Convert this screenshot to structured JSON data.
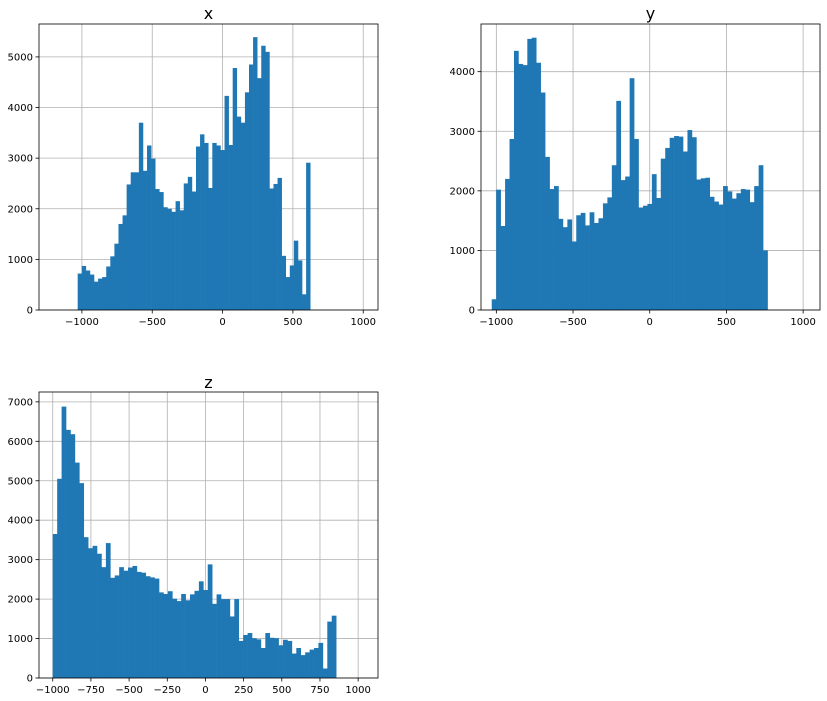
{
  "figure": {
    "background": "#ffffff",
    "bar_color": "#1f77b4",
    "grid_color": "#b0b0b0"
  },
  "chart_data": [
    {
      "type": "bar",
      "title": "x",
      "grid": true,
      "bin_width": 29,
      "xlim": [
        -1305,
        1105
      ],
      "ylim": [
        0,
        5650
      ],
      "xticks": [
        -1000,
        -500,
        0,
        500,
        1000
      ],
      "yticks": [
        0,
        1000,
        2000,
        3000,
        4000,
        5000
      ],
      "bins": [
        {
          "x": -1030,
          "count": 720
        },
        {
          "x": -1001,
          "count": 870
        },
        {
          "x": -972,
          "count": 780
        },
        {
          "x": -943,
          "count": 700
        },
        {
          "x": -914,
          "count": 560
        },
        {
          "x": -885,
          "count": 620
        },
        {
          "x": -856,
          "count": 650
        },
        {
          "x": -827,
          "count": 860
        },
        {
          "x": -798,
          "count": 1060
        },
        {
          "x": -769,
          "count": 1310
        },
        {
          "x": -740,
          "count": 1700
        },
        {
          "x": -711,
          "count": 1870
        },
        {
          "x": -682,
          "count": 2480
        },
        {
          "x": -653,
          "count": 2720
        },
        {
          "x": -624,
          "count": 2720
        },
        {
          "x": -595,
          "count": 3700
        },
        {
          "x": -566,
          "count": 2750
        },
        {
          "x": -537,
          "count": 3250
        },
        {
          "x": -508,
          "count": 2990
        },
        {
          "x": -479,
          "count": 2390
        },
        {
          "x": -450,
          "count": 2330
        },
        {
          "x": -421,
          "count": 2030
        },
        {
          "x": -392,
          "count": 2000
        },
        {
          "x": -363,
          "count": 1940
        },
        {
          "x": -334,
          "count": 2150
        },
        {
          "x": -305,
          "count": 1970
        },
        {
          "x": -276,
          "count": 2500
        },
        {
          "x": -247,
          "count": 2630
        },
        {
          "x": -218,
          "count": 2340
        },
        {
          "x": -189,
          "count": 3230
        },
        {
          "x": -160,
          "count": 3470
        },
        {
          "x": -131,
          "count": 3300
        },
        {
          "x": -102,
          "count": 2410
        },
        {
          "x": -73,
          "count": 3300
        },
        {
          "x": -44,
          "count": 3250
        },
        {
          "x": -15,
          "count": 3160
        },
        {
          "x": 14,
          "count": 4230
        },
        {
          "x": 43,
          "count": 3260
        },
        {
          "x": 72,
          "count": 4780
        },
        {
          "x": 101,
          "count": 3820
        },
        {
          "x": 130,
          "count": 3700
        },
        {
          "x": 159,
          "count": 4300
        },
        {
          "x": 188,
          "count": 4850
        },
        {
          "x": 217,
          "count": 5390
        },
        {
          "x": 246,
          "count": 4580
        },
        {
          "x": 275,
          "count": 5220
        },
        {
          "x": 304,
          "count": 5100
        },
        {
          "x": 333,
          "count": 2400
        },
        {
          "x": 362,
          "count": 2490
        },
        {
          "x": 391,
          "count": 2610
        },
        {
          "x": 420,
          "count": 1070
        },
        {
          "x": 449,
          "count": 650
        },
        {
          "x": 478,
          "count": 880
        },
        {
          "x": 507,
          "count": 1370
        },
        {
          "x": 536,
          "count": 980
        },
        {
          "x": 565,
          "count": 310
        },
        {
          "x": 594,
          "count": 2910
        }
      ]
    },
    {
      "type": "bar",
      "title": "y",
      "grid": true,
      "bin_width": 29,
      "xlim": [
        -1100,
        1110
      ],
      "ylim": [
        0,
        4800
      ],
      "xticks": [
        -1000,
        -500,
        0,
        500,
        1000
      ],
      "yticks": [
        0,
        1000,
        2000,
        3000,
        4000
      ],
      "bins": [
        {
          "x": -1030,
          "count": 180
        },
        {
          "x": -1001,
          "count": 2020
        },
        {
          "x": -972,
          "count": 1410
        },
        {
          "x": -943,
          "count": 2200
        },
        {
          "x": -914,
          "count": 2870
        },
        {
          "x": -885,
          "count": 4350
        },
        {
          "x": -856,
          "count": 4130
        },
        {
          "x": -827,
          "count": 4110
        },
        {
          "x": -798,
          "count": 4550
        },
        {
          "x": -769,
          "count": 4570
        },
        {
          "x": -740,
          "count": 4150
        },
        {
          "x": -711,
          "count": 3650
        },
        {
          "x": -682,
          "count": 2570
        },
        {
          "x": -653,
          "count": 2030
        },
        {
          "x": -624,
          "count": 2080
        },
        {
          "x": -595,
          "count": 1530
        },
        {
          "x": -566,
          "count": 1390
        },
        {
          "x": -537,
          "count": 1520
        },
        {
          "x": -508,
          "count": 1150
        },
        {
          "x": -479,
          "count": 1590
        },
        {
          "x": -450,
          "count": 1630
        },
        {
          "x": -421,
          "count": 1420
        },
        {
          "x": -392,
          "count": 1640
        },
        {
          "x": -363,
          "count": 1460
        },
        {
          "x": -334,
          "count": 1540
        },
        {
          "x": -305,
          "count": 1790
        },
        {
          "x": -276,
          "count": 1890
        },
        {
          "x": -247,
          "count": 2430
        },
        {
          "x": -218,
          "count": 3510
        },
        {
          "x": -189,
          "count": 2180
        },
        {
          "x": -160,
          "count": 2240
        },
        {
          "x": -131,
          "count": 3890
        },
        {
          "x": -102,
          "count": 2870
        },
        {
          "x": -73,
          "count": 1720
        },
        {
          "x": -44,
          "count": 1750
        },
        {
          "x": -15,
          "count": 1780
        },
        {
          "x": 14,
          "count": 2280
        },
        {
          "x": 43,
          "count": 1880
        },
        {
          "x": 72,
          "count": 2540
        },
        {
          "x": 101,
          "count": 2720
        },
        {
          "x": 130,
          "count": 2890
        },
        {
          "x": 159,
          "count": 2920
        },
        {
          "x": 188,
          "count": 2910
        },
        {
          "x": 217,
          "count": 2660
        },
        {
          "x": 246,
          "count": 3020
        },
        {
          "x": 275,
          "count": 2900
        },
        {
          "x": 304,
          "count": 2190
        },
        {
          "x": 333,
          "count": 2210
        },
        {
          "x": 362,
          "count": 2220
        },
        {
          "x": 391,
          "count": 1900
        },
        {
          "x": 420,
          "count": 1820
        },
        {
          "x": 449,
          "count": 1770
        },
        {
          "x": 478,
          "count": 2080
        },
        {
          "x": 507,
          "count": 1990
        },
        {
          "x": 536,
          "count": 1870
        },
        {
          "x": 565,
          "count": 1960
        },
        {
          "x": 594,
          "count": 2030
        },
        {
          "x": 623,
          "count": 2020
        },
        {
          "x": 652,
          "count": 1810
        },
        {
          "x": 681,
          "count": 2080
        },
        {
          "x": 710,
          "count": 2430
        },
        {
          "x": 739,
          "count": 1000
        }
      ]
    },
    {
      "type": "bar",
      "title": "z",
      "grid": true,
      "bin_width": 29,
      "xlim": [
        -1090,
        1130
      ],
      "ylim": [
        0,
        7250
      ],
      "xticks": [
        -1000,
        -750,
        -500,
        -250,
        0,
        250,
        500,
        750,
        1000
      ],
      "yticks": [
        0,
        1000,
        2000,
        3000,
        4000,
        5000,
        6000,
        7000
      ],
      "bins": [
        {
          "x": -1000,
          "count": 3650
        },
        {
          "x": -971,
          "count": 5050
        },
        {
          "x": -942,
          "count": 6880
        },
        {
          "x": -913,
          "count": 6290
        },
        {
          "x": -884,
          "count": 6180
        },
        {
          "x": -855,
          "count": 5460
        },
        {
          "x": -826,
          "count": 4940
        },
        {
          "x": -797,
          "count": 3570
        },
        {
          "x": -768,
          "count": 3290
        },
        {
          "x": -739,
          "count": 3350
        },
        {
          "x": -710,
          "count": 3150
        },
        {
          "x": -681,
          "count": 2810
        },
        {
          "x": -652,
          "count": 3420
        },
        {
          "x": -623,
          "count": 2540
        },
        {
          "x": -594,
          "count": 2600
        },
        {
          "x": -565,
          "count": 2810
        },
        {
          "x": -536,
          "count": 2720
        },
        {
          "x": -507,
          "count": 2800
        },
        {
          "x": -478,
          "count": 2840
        },
        {
          "x": -449,
          "count": 2690
        },
        {
          "x": -420,
          "count": 2670
        },
        {
          "x": -391,
          "count": 2580
        },
        {
          "x": -362,
          "count": 2550
        },
        {
          "x": -333,
          "count": 2520
        },
        {
          "x": -304,
          "count": 2170
        },
        {
          "x": -275,
          "count": 2130
        },
        {
          "x": -246,
          "count": 2200
        },
        {
          "x": -217,
          "count": 2010
        },
        {
          "x": -188,
          "count": 1950
        },
        {
          "x": -159,
          "count": 2130
        },
        {
          "x": -130,
          "count": 1970
        },
        {
          "x": -101,
          "count": 2120
        },
        {
          "x": -72,
          "count": 2210
        },
        {
          "x": -43,
          "count": 2450
        },
        {
          "x": -14,
          "count": 2230
        },
        {
          "x": 15,
          "count": 2880
        },
        {
          "x": 44,
          "count": 1880
        },
        {
          "x": 73,
          "count": 2120
        },
        {
          "x": 102,
          "count": 2000
        },
        {
          "x": 131,
          "count": 2000
        },
        {
          "x": 160,
          "count": 1560
        },
        {
          "x": 189,
          "count": 2000
        },
        {
          "x": 218,
          "count": 940
        },
        {
          "x": 247,
          "count": 1090
        },
        {
          "x": 276,
          "count": 1140
        },
        {
          "x": 305,
          "count": 1010
        },
        {
          "x": 334,
          "count": 980
        },
        {
          "x": 363,
          "count": 760
        },
        {
          "x": 392,
          "count": 1140
        },
        {
          "x": 421,
          "count": 1020
        },
        {
          "x": 450,
          "count": 1010
        },
        {
          "x": 479,
          "count": 830
        },
        {
          "x": 508,
          "count": 970
        },
        {
          "x": 537,
          "count": 940
        },
        {
          "x": 566,
          "count": 620
        },
        {
          "x": 595,
          "count": 760
        },
        {
          "x": 624,
          "count": 580
        },
        {
          "x": 653,
          "count": 650
        },
        {
          "x": 682,
          "count": 720
        },
        {
          "x": 711,
          "count": 760
        },
        {
          "x": 740,
          "count": 890
        },
        {
          "x": 769,
          "count": 240
        },
        {
          "x": 798,
          "count": 1430
        },
        {
          "x": 827,
          "count": 1580
        }
      ]
    }
  ]
}
